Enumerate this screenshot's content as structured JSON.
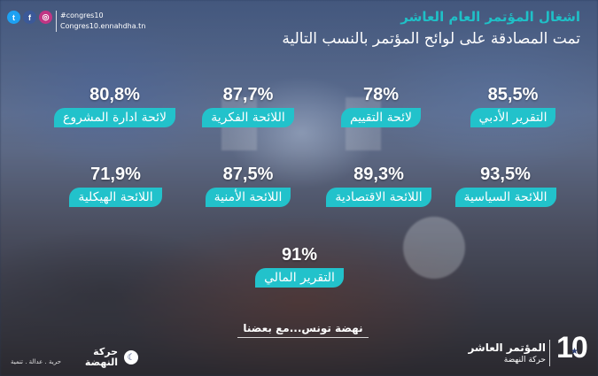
{
  "social": {
    "icons": [
      {
        "name": "twitter-icon",
        "glyph": "t",
        "color": "#1da1f2"
      },
      {
        "name": "facebook-icon",
        "glyph": "f",
        "color": "#3b5998"
      },
      {
        "name": "instagram-icon",
        "glyph": "◎",
        "color": "#c13584"
      }
    ],
    "hashtag": "#congres10",
    "site": "Congres10.ennahdha.tn"
  },
  "header": {
    "title": "اشغال المؤتمر العام العاشر",
    "subtitle": "تمت المصادقة على لوائح المؤتمر بالنسب التالية"
  },
  "items": [
    {
      "percent": "85,5%",
      "label": "التقرير الأدبي"
    },
    {
      "percent": "78%",
      "label": "لائحة التقييم"
    },
    {
      "percent": "87,7%",
      "label": "اللائحة الفكرية"
    },
    {
      "percent": "80,8%",
      "label": "لائحة ادارة المشروع"
    },
    {
      "percent": "93,5%",
      "label": "اللائحة السياسية"
    },
    {
      "percent": "89,3%",
      "label": "اللائحة الاقتصادية"
    },
    {
      "percent": "87,5%",
      "label": "اللائحة الأمنية"
    },
    {
      "percent": "71,9%",
      "label": "اللائحة الهيكلية"
    },
    {
      "percent": "91%",
      "label": "التقرير المالي"
    }
  ],
  "slogan": "نهضة تونس...مع بعضنا",
  "party": {
    "motto": "حرية . عدالة . تنمية",
    "name_line1": "حركة",
    "name_line2": "النهضة"
  },
  "congress": {
    "title": "المؤتمر العاشر",
    "subtitle": "حركة النهضة",
    "number": "10"
  },
  "colors": {
    "accent": "#22c2cb",
    "header_accent": "#1fc0c7"
  }
}
